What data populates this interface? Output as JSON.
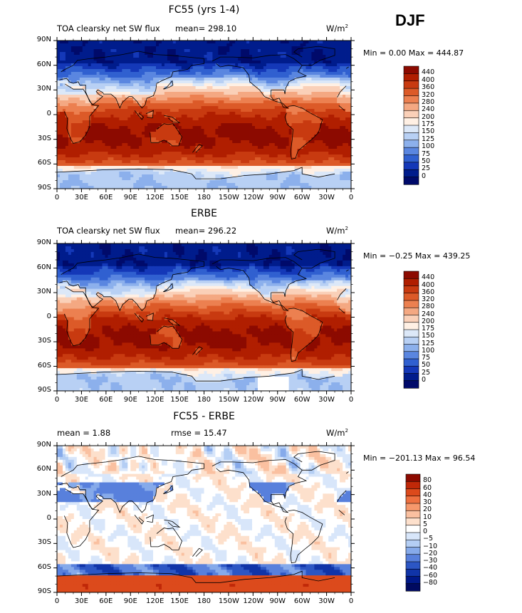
{
  "season": "DJF",
  "panels": [
    {
      "id": "model",
      "title": "FC55 (yrs 1-4)",
      "left_label": "TOA clearsky net SW flux",
      "mean_text": "mean= 298.10",
      "rmse_text": "",
      "units": "W/m",
      "units_sup": "2",
      "minmax": "Min =    0.00 Max = 444.87",
      "palette": "abs",
      "colorbar_labels": [
        "440",
        "400",
        "360",
        "320",
        "280",
        "240",
        "200",
        "175",
        "150",
        "125",
        "100",
        "75",
        "50",
        "25",
        "0"
      ]
    },
    {
      "id": "obs",
      "title": "ERBE",
      "left_label": "TOA clearsky net SW flux",
      "mean_text": "mean= 296.22",
      "rmse_text": "",
      "units": "W/m",
      "units_sup": "2",
      "minmax": "Min =  −0.25 Max = 439.25",
      "palette": "abs",
      "colorbar_labels": [
        "440",
        "400",
        "360",
        "320",
        "280",
        "240",
        "200",
        "175",
        "150",
        "125",
        "100",
        "75",
        "50",
        "25",
        "0"
      ]
    },
    {
      "id": "diff",
      "title": "FC55 - ERBE",
      "left_label": "mean =     1.88",
      "mean_text": "",
      "rmse_text": "rmse =   15.47",
      "units": "W/m",
      "units_sup": "2",
      "minmax": "Min = −201.13 Max =  96.54",
      "palette": "diff",
      "colorbar_labels": [
        "80",
        "60",
        "40",
        "30",
        "20",
        "10",
        "5",
        "0",
        "−5",
        "−10",
        "−20",
        "−30",
        "−40",
        "−60",
        "−80"
      ]
    }
  ],
  "lat_labels": [
    "90N",
    "60N",
    "30N",
    "0",
    "30S",
    "60S",
    "90S"
  ],
  "lon_labels": [
    "0",
    "30E",
    "60E",
    "90E",
    "120E",
    "150E",
    "180",
    "150W",
    "120W",
    "90W",
    "60W",
    "30W",
    "0"
  ],
  "colors": {
    "abs": [
      "#8c0a00",
      "#b01e00",
      "#c83a10",
      "#dc5a28",
      "#ec8050",
      "#f4a882",
      "#fad0b8",
      "#fff0e4",
      "#dce8f8",
      "#b8d0f4",
      "#8cb0ec",
      "#5a86e0",
      "#3060d0",
      "#1438b8",
      "#001c8c",
      "#000a6a"
    ],
    "diff": [
      "#8c0a00",
      "#c02808",
      "#dc4a1c",
      "#ee7040",
      "#f6986c",
      "#fac0a0",
      "#fde0cc",
      "#ffffff",
      "#d8e6fa",
      "#b4cef4",
      "#86aaea",
      "#5880dc",
      "#2c56c4",
      "#1034a8",
      "#001888",
      "#000a60"
    ]
  }
}
